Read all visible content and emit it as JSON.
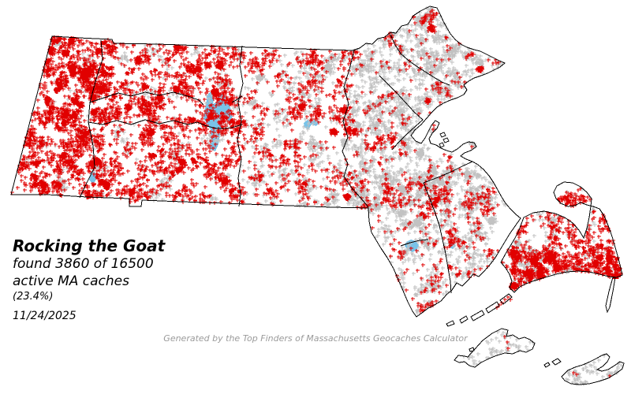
{
  "info_panel": {
    "title": "Rocking the Goat",
    "found_line": "found 3860 of 16500",
    "caches_line": "active MA caches",
    "percent_line": "(23.4%)",
    "date": "11/24/2025"
  },
  "footer": {
    "credit": "Generated by the Top Finders of Massachusetts Geocaches Calculator"
  },
  "map": {
    "state": "Massachusetts",
    "marker_glyph": "plus-cross",
    "colors": {
      "found_marker": "#e10000",
      "unfound_marker": "#c2c2c2",
      "water": "#79c3e8",
      "boundary": "#000000",
      "background": "#ffffff",
      "credit_text": "#9b9b9b"
    }
  },
  "stats": {
    "found": 3860,
    "total": 16500,
    "percent_found": "23.4%"
  }
}
